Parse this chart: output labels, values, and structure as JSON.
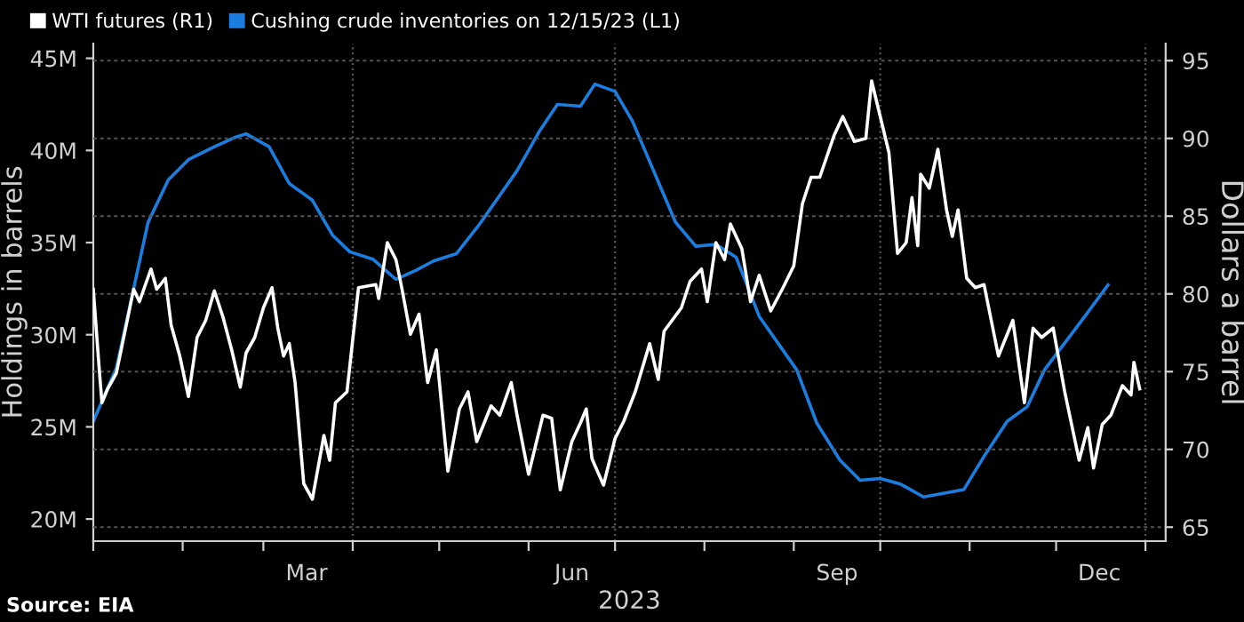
{
  "chart_data": {
    "type": "line",
    "xlabel": "2023",
    "ylabel": "Holdings in barrels",
    "y2label": "Dollars a barrel",
    "annotations": [
      "Source: EIA"
    ],
    "series": [
      {
        "name": "WTI futures (R1)",
        "color": "#ffffff",
        "axis": "y2",
        "x": [
          "2023-01-01",
          "2023-01-03",
          "2023-01-04",
          "2023-01-06",
          "2023-01-09",
          "2023-01-12",
          "2023-01-15",
          "2023-01-17",
          "2023-01-21",
          "2023-01-23",
          "2023-01-26",
          "2023-01-28",
          "2023-01-31",
          "2023-02-03",
          "2023-02-06",
          "2023-02-09",
          "2023-02-12",
          "2023-02-15",
          "2023-02-18",
          "2023-02-21",
          "2023-02-23",
          "2023-02-26",
          "2023-03-01",
          "2023-03-04",
          "2023-03-06",
          "2023-03-08",
          "2023-03-10",
          "2023-03-12",
          "2023-03-15",
          "2023-03-18",
          "2023-03-22",
          "2023-03-24",
          "2023-03-26",
          "2023-03-30",
          "2023-04-03",
          "2023-04-09",
          "2023-04-10",
          "2023-04-13",
          "2023-04-16",
          "2023-04-18",
          "2023-04-21",
          "2023-04-24",
          "2023-04-27",
          "2023-04-30",
          "2023-05-04",
          "2023-05-08",
          "2023-05-11",
          "2023-05-14",
          "2023-05-19",
          "2023-05-22",
          "2023-05-26",
          "2023-05-28",
          "2023-06-01",
          "2023-06-06",
          "2023-06-09",
          "2023-06-12",
          "2023-06-16",
          "2023-06-19",
          "2023-06-21",
          "2023-06-23",
          "2023-06-27",
          "2023-07-01",
          "2023-07-04",
          "2023-07-08",
          "2023-07-13",
          "2023-07-16",
          "2023-07-18",
          "2023-07-24",
          "2023-07-27",
          "2023-07-31",
          "2023-08-02",
          "2023-08-05",
          "2023-08-08",
          "2023-08-10",
          "2023-08-14",
          "2023-08-17",
          "2023-08-20",
          "2023-08-24",
          "2023-08-28",
          "2023-09-01",
          "2023-09-04",
          "2023-09-07",
          "2023-09-10",
          "2023-09-15",
          "2023-09-18",
          "2023-09-22",
          "2023-09-26",
          "2023-09-28",
          "2023-10-01",
          "2023-10-04",
          "2023-10-07",
          "2023-10-10",
          "2023-10-12",
          "2023-10-14",
          "2023-10-15",
          "2023-10-18",
          "2023-10-21",
          "2023-10-24",
          "2023-10-26",
          "2023-10-28",
          "2023-10-31",
          "2023-11-03",
          "2023-11-06",
          "2023-11-11",
          "2023-11-16",
          "2023-11-20",
          "2023-11-23",
          "2023-11-26",
          "2023-11-30",
          "2023-12-04",
          "2023-12-09",
          "2023-12-12",
          "2023-12-14",
          "2023-12-17",
          "2023-12-20",
          "2023-12-24",
          "2023-12-27",
          "2023-12-28",
          "2023-12-30"
        ],
        "values": [
          80.3,
          75.3,
          73.0,
          73.9,
          74.9,
          77.6,
          80.3,
          79.5,
          81.6,
          80.3,
          81.0,
          78.0,
          76.0,
          73.4,
          77.2,
          78.3,
          80.2,
          78.5,
          76.4,
          74.0,
          76.2,
          77.2,
          79.1,
          80.4,
          77.8,
          76.0,
          76.8,
          74.3,
          67.8,
          66.8,
          70.9,
          69.3,
          73.0,
          73.7,
          80.4,
          80.6,
          79.7,
          83.3,
          82.2,
          80.4,
          77.4,
          78.7,
          74.3,
          76.4,
          68.6,
          72.6,
          73.7,
          70.5,
          72.8,
          72.2,
          74.3,
          72.2,
          68.4,
          72.2,
          72.0,
          67.4,
          70.5,
          71.7,
          72.6,
          69.4,
          67.7,
          70.7,
          71.8,
          73.7,
          76.8,
          74.5,
          77.6,
          79.1,
          80.8,
          81.6,
          79.5,
          83.3,
          82.2,
          84.5,
          82.9,
          79.5,
          81.2,
          78.9,
          80.3,
          81.8,
          85.8,
          87.5,
          87.5,
          90.2,
          91.4,
          89.8,
          90.0,
          93.7,
          91.4,
          89.1,
          82.6,
          83.3,
          86.2,
          83.1,
          87.7,
          86.8,
          89.3,
          85.4,
          83.7,
          85.4,
          81.0,
          80.4,
          80.6,
          76.0,
          78.3,
          73.0,
          77.8,
          77.2,
          77.8,
          73.7,
          69.3,
          71.4,
          68.8,
          71.6,
          72.2,
          74.1,
          73.5,
          75.6,
          73.9
        ]
      },
      {
        "name": "Cushing crude inventories on 12/15/23 (L1)",
        "color": "#1a7ee0",
        "axis": "y",
        "x": [
          "2023-01-01",
          "2023-01-09",
          "2023-01-20",
          "2023-01-27",
          "2023-02-03",
          "2023-02-12",
          "2023-02-19",
          "2023-02-23",
          "2023-03-03",
          "2023-03-10",
          "2023-03-18",
          "2023-03-25",
          "2023-03-31",
          "2023-04-08",
          "2023-04-16",
          "2023-04-23",
          "2023-04-29",
          "2023-05-07",
          "2023-05-15",
          "2023-05-28",
          "2023-06-05",
          "2023-06-11",
          "2023-06-19",
          "2023-06-24",
          "2023-07-01",
          "2023-07-07",
          "2023-07-22",
          "2023-07-29",
          "2023-08-05",
          "2023-08-12",
          "2023-08-20",
          "2023-09-02",
          "2023-09-09",
          "2023-09-17",
          "2023-09-24",
          "2023-10-01",
          "2023-10-08",
          "2023-10-16",
          "2023-10-30",
          "2023-11-06",
          "2023-11-14",
          "2023-11-21",
          "2023-11-27",
          "2023-12-11",
          "2023-12-19"
        ],
        "values": [
          25.3,
          28.2,
          36.1,
          38.4,
          39.5,
          40.2,
          40.7,
          40.9,
          40.2,
          38.2,
          37.3,
          35.4,
          34.5,
          34.1,
          33.0,
          33.5,
          34.0,
          34.4,
          36.0,
          38.9,
          41.1,
          42.5,
          42.4,
          43.6,
          43.2,
          41.6,
          36.1,
          34.8,
          34.9,
          34.2,
          31.0,
          28.1,
          25.2,
          23.2,
          22.1,
          22.2,
          21.9,
          21.2,
          21.6,
          23.4,
          25.3,
          26.1,
          28.1,
          31.0,
          32.7
        ]
      }
    ],
    "xlim": [
      "2023-01-01",
      "2024-01-08"
    ],
    "xticks": [
      {
        "value": "2023-01-01",
        "label": null
      },
      {
        "value": "2023-02-01",
        "label": null
      },
      {
        "value": "2023-03-01",
        "label": null
      },
      {
        "value": "2023-03-16",
        "label": "Mar"
      },
      {
        "value": "2023-04-01",
        "label": null
      },
      {
        "value": "2023-05-01",
        "label": null
      },
      {
        "value": "2023-06-01",
        "label": null
      },
      {
        "value": "2023-06-16",
        "label": "Jun"
      },
      {
        "value": "2023-07-01",
        "label": null
      },
      {
        "value": "2023-08-01",
        "label": null
      },
      {
        "value": "2023-09-01",
        "label": null
      },
      {
        "value": "2023-09-16",
        "label": "Sep"
      },
      {
        "value": "2023-10-01",
        "label": null
      },
      {
        "value": "2023-11-01",
        "label": null
      },
      {
        "value": "2023-12-01",
        "label": null
      },
      {
        "value": "2023-12-16",
        "label": "Dec"
      },
      {
        "value": "2024-01-01",
        "label": null
      }
    ],
    "ylim": [
      18.8,
      45.8
    ],
    "yticks": [
      {
        "value": 20,
        "label": "20M"
      },
      {
        "value": 25,
        "label": "25M"
      },
      {
        "value": 30,
        "label": "30M"
      },
      {
        "value": 35,
        "label": "35M"
      },
      {
        "value": 40,
        "label": "40M"
      },
      {
        "value": 45,
        "label": "45M"
      }
    ],
    "y2lim": [
      64.1,
      96.1
    ],
    "y2ticks": [
      65,
      70,
      75,
      80,
      85,
      90,
      95
    ],
    "ref_lines": [
      {
        "axis": "x",
        "value": "2023-04-01",
        "color": "#555555",
        "line_style": "dotted"
      },
      {
        "axis": "x",
        "value": "2023-07-01",
        "color": "#555555",
        "line_style": "dotted"
      },
      {
        "axis": "x",
        "value": "2023-10-01",
        "color": "#555555",
        "line_style": "dotted"
      },
      {
        "axis": "x",
        "value": "2024-01-01",
        "color": "#555555",
        "line_style": "dotted"
      }
    ],
    "grid": "y2",
    "legend": "top left",
    "marker": "none",
    "line_style": "solid"
  }
}
